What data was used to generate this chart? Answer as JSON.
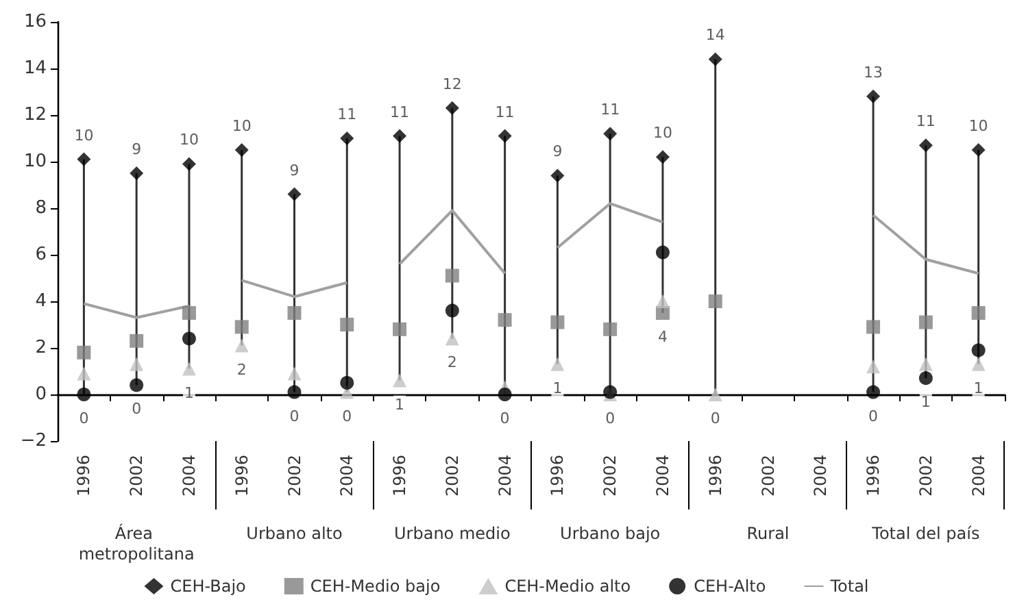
{
  "chart_data": {
    "type": "scatter",
    "categories": [
      "1996",
      "2002",
      "2004",
      "1996",
      "2002",
      "2004",
      "1996",
      "2002",
      "2004",
      "1996",
      "2002",
      "2004",
      "1996",
      "2002",
      "2004",
      "1996",
      "2002",
      "2004"
    ],
    "annotations": [
      "Área metropolitana",
      "Urbano alto",
      "Urbano medio",
      "Urbano bajo",
      "Rural",
      "Total del país"
    ],
    "series": [
      {
        "type": "bar",
        "color": "#333333",
        "base": [
          0,
          0.4,
          1.1,
          2.1,
          0.1,
          0.1,
          0.6,
          2.4,
          0,
          1.3,
          0,
          3.5,
          0,
          null,
          null,
          0.1,
          0.7,
          1.3
        ],
        "values": [
          10.1,
          9.1,
          8.8,
          8.4,
          8.5,
          10.9,
          10.5,
          9.9,
          11.1,
          8.1,
          11.2,
          6.7,
          14.4,
          null,
          null,
          12.7,
          10.0,
          9.2
        ]
      },
      {
        "name": "CEH-Bajo",
        "color": "#000000",
        "marker": "diamond",
        "values": [
          10.1,
          9.5,
          9.9,
          10.5,
          8.6,
          11.0,
          11.1,
          12.3,
          11.1,
          9.4,
          11.2,
          10.2,
          14.4,
          null,
          null,
          12.8,
          10.7,
          10.5
        ],
        "value_labels": [
          "10",
          "9",
          "10",
          "10",
          "9",
          "11",
          "11",
          "12",
          "11",
          "9",
          "11",
          "10",
          "14",
          null,
          null,
          "13",
          "11",
          "10"
        ]
      },
      {
        "name": "CEH-Medio bajo",
        "color": "#808080",
        "marker": "square",
        "values": [
          1.8,
          2.3,
          3.5,
          2.9,
          3.5,
          3.0,
          2.8,
          5.1,
          3.2,
          3.1,
          2.8,
          3.5,
          4.0,
          null,
          null,
          2.9,
          3.1,
          3.5
        ],
        "value_labels": [
          null,
          null,
          null,
          null,
          null,
          null,
          null,
          null,
          null,
          null,
          null,
          "4",
          null,
          null,
          null,
          null,
          null,
          null
        ]
      },
      {
        "name": "CEH-Medio alto",
        "color": "#c0c0c0",
        "marker": "triangle",
        "values": [
          0.9,
          1.3,
          1.1,
          2.1,
          0.9,
          0.1,
          0.6,
          2.4,
          0.3,
          1.3,
          0,
          4.0,
          0,
          null,
          null,
          1.2,
          1.3,
          1.3
        ],
        "value_labels": [
          null,
          null,
          "1",
          "2",
          null,
          "0",
          "1",
          "2",
          null,
          "1",
          "0",
          null,
          "0",
          null,
          null,
          null,
          null,
          "1"
        ]
      },
      {
        "name": "CEH-Alto",
        "color": "#000000",
        "marker": "circle",
        "values": [
          0,
          0.4,
          2.4,
          null,
          0.1,
          0.5,
          null,
          3.6,
          0,
          null,
          0.1,
          6.1,
          null,
          null,
          null,
          0.1,
          0.7,
          1.9
        ],
        "value_labels": [
          "0",
          "0",
          null,
          null,
          "0",
          null,
          null,
          null,
          "0",
          null,
          null,
          null,
          null,
          null,
          null,
          "0",
          "1",
          null
        ]
      },
      {
        "name": "Total",
        "type": "line",
        "color": "#a0a0a0",
        "marker": "none",
        "values": [
          3.9,
          3.3,
          3.8,
          4.9,
          4.2,
          4.8,
          5.6,
          7.9,
          5.2,
          6.3,
          8.2,
          7.4,
          null,
          null,
          null,
          7.7,
          5.8,
          5.2
        ]
      }
    ],
    "ylim": [
      -2,
      16
    ],
    "yticks": [
      -2,
      0,
      2,
      4,
      6,
      8,
      10,
      12,
      14,
      16
    ],
    "legend": "bottom"
  }
}
